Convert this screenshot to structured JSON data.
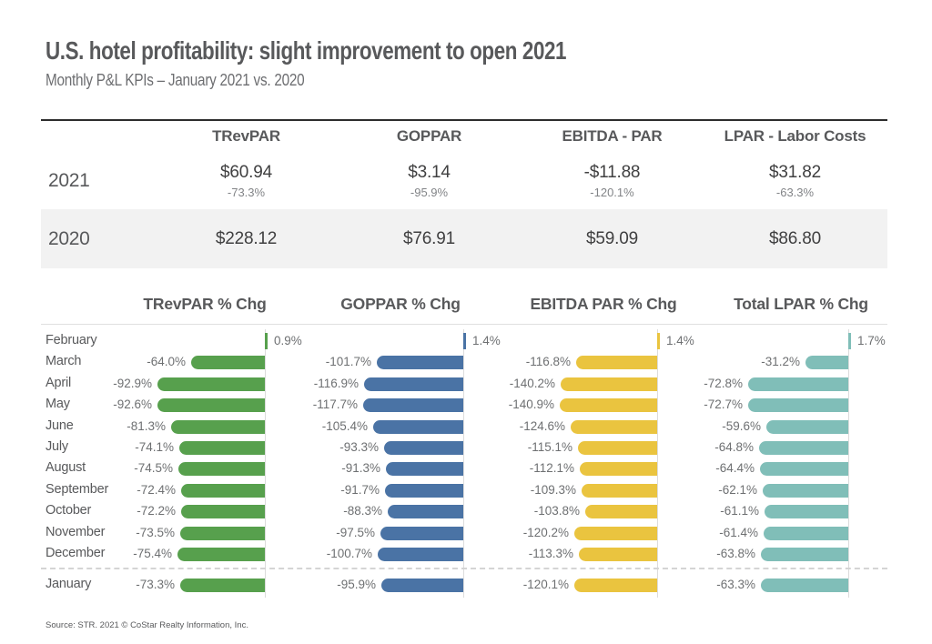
{
  "header": {
    "title": "U.S. hotel profitability: slight improvement to open 2021",
    "subtitle": "Monthly P&L KPIs – January 2021 vs. 2020"
  },
  "kpi_table": {
    "columns": [
      "TRevPAR",
      "GOPPAR",
      "EBITDA - PAR",
      "LPAR - Labor Costs"
    ],
    "rows": [
      {
        "year": "2021",
        "values": [
          "$60.94",
          "$3.14",
          "-$11.88",
          "$31.82"
        ],
        "changes": [
          "-73.3%",
          "-95.9%",
          "-120.1%",
          "-63.3%"
        ]
      },
      {
        "year": "2020",
        "values": [
          "$228.12",
          "$76.91",
          "$59.09",
          "$86.80"
        ]
      }
    ]
  },
  "chart_data": {
    "type": "bar",
    "orientation": "horizontal",
    "value_suffix": "%",
    "categories": [
      "February",
      "March",
      "April",
      "May",
      "June",
      "July",
      "August",
      "September",
      "October",
      "November",
      "December",
      "January"
    ],
    "series": [
      {
        "name": "TRevPAR % Chg",
        "color": "#57a04d",
        "values": [
          0.9,
          -64.0,
          -92.9,
          -92.6,
          -81.3,
          -74.1,
          -74.5,
          -72.4,
          -72.2,
          -73.5,
          -75.4,
          -73.3
        ]
      },
      {
        "name": "GOPPAR % Chg",
        "color": "#4a73a5",
        "values": [
          1.4,
          -101.7,
          -116.9,
          -117.7,
          -105.4,
          -93.3,
          -91.3,
          -91.7,
          -88.3,
          -97.5,
          -100.7,
          -95.9
        ]
      },
      {
        "name": "EBITDA PAR % Chg",
        "color": "#eac43f",
        "values": [
          1.4,
          -116.8,
          -140.2,
          -140.9,
          -124.6,
          -115.1,
          -112.1,
          -109.3,
          -103.8,
          -120.2,
          -113.3,
          -120.1
        ]
      },
      {
        "name": "Total LPAR % Chg",
        "color": "#80beb8",
        "values": [
          1.7,
          -31.2,
          -72.8,
          -72.7,
          -59.6,
          -64.8,
          -64.4,
          -62.1,
          -61.1,
          -61.4,
          -63.8,
          -63.3
        ]
      }
    ],
    "note": "Dotted separator between December (2020) and January (2021) rows"
  },
  "footer": {
    "source": "Source: STR. 2021 © CoStar Realty Information, Inc."
  }
}
